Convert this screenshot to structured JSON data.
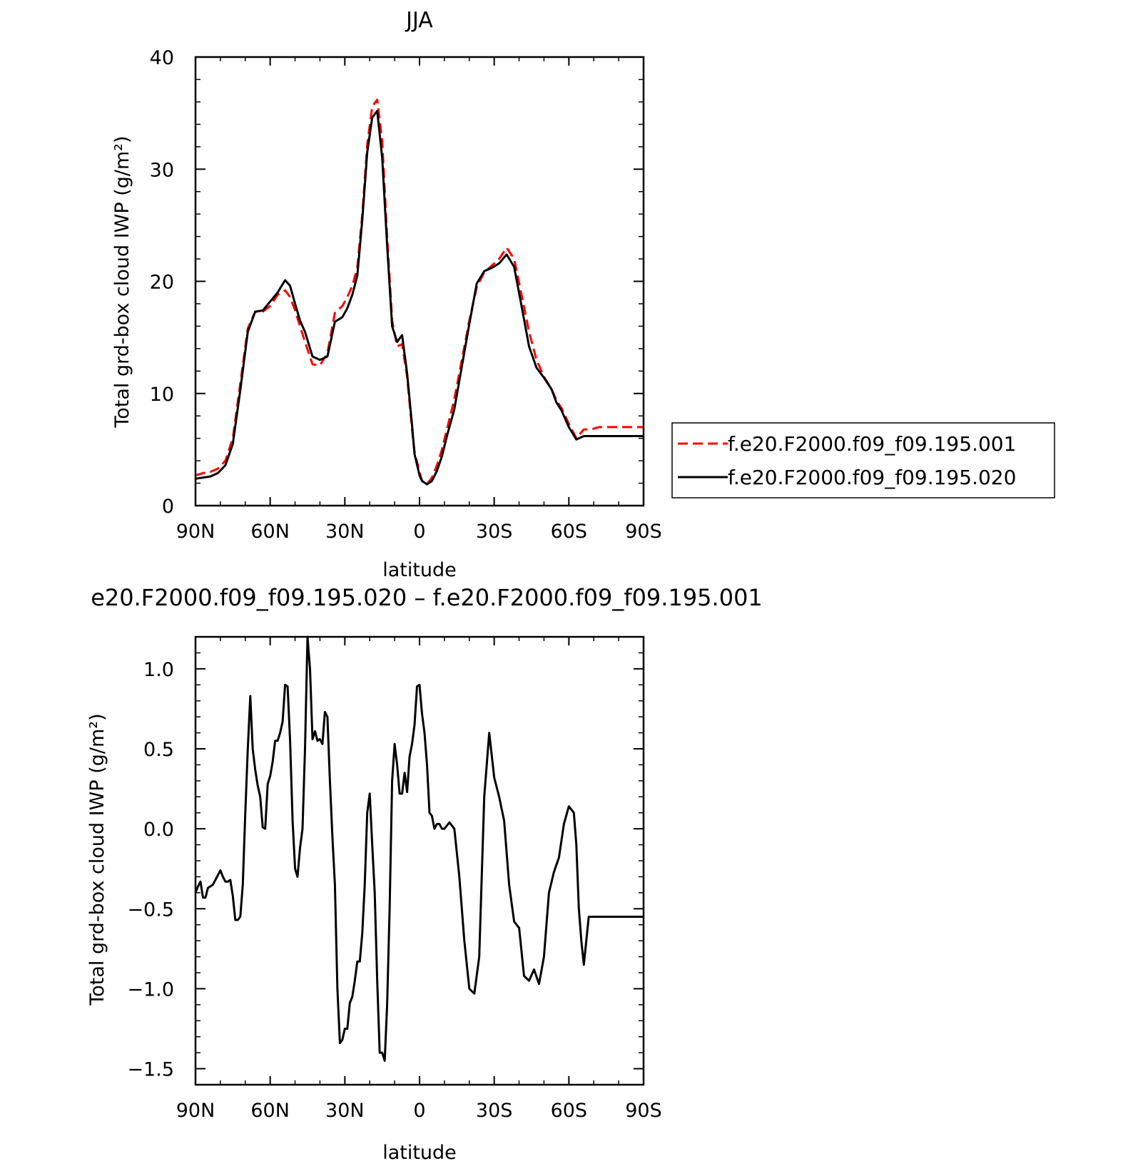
{
  "chart_data": [
    {
      "type": "line",
      "title": "JJA",
      "xlabel": "latitude",
      "ylabel": "Total grd-box cloud IWP (g/m²)",
      "xlim": [
        90,
        -90
      ],
      "ylim": [
        0,
        40
      ],
      "x_ticks": [
        90,
        60,
        30,
        0,
        -30,
        -60,
        -90
      ],
      "x_tick_labels": [
        "90N",
        "60N",
        "30N",
        "0",
        "30S",
        "60S",
        "90S"
      ],
      "y_ticks": [
        0,
        10,
        20,
        30,
        40
      ],
      "y_tick_labels": [
        "0",
        "10",
        "20",
        "30",
        "40"
      ],
      "legend_position": "right",
      "series": [
        {
          "name": "f.e20.F2000.f09_f09.195.001",
          "color": "#ff0000",
          "dash": "dashed",
          "x": [
            90,
            87,
            84,
            81,
            78,
            75,
            72,
            69,
            66,
            63,
            60,
            57,
            54,
            52,
            50,
            48,
            46,
            43,
            40,
            37,
            34,
            31,
            29,
            27,
            25,
            23,
            21,
            19,
            17,
            15,
            13,
            11,
            9,
            7,
            5,
            3,
            2,
            0,
            -1,
            -3,
            -5,
            -7,
            -9,
            -11,
            -14,
            -17,
            -20,
            -23,
            -26,
            -29,
            -32,
            -35,
            -38,
            -41,
            -44,
            -47,
            -50,
            -53,
            -55,
            -57,
            -60,
            -63,
            -66,
            -69,
            -72,
            -75,
            -78,
            -80,
            -82,
            -84,
            -86,
            -88,
            -90
          ],
          "y": [
            2.7,
            2.9,
            3.0,
            3.3,
            4.0,
            6.0,
            10.9,
            15.8,
            17.3,
            17.3,
            17.8,
            18.8,
            19.2,
            18.6,
            17.4,
            16.0,
            14.6,
            12.6,
            12.5,
            13.6,
            17.2,
            17.8,
            18.6,
            19.6,
            21.2,
            26.0,
            32.2,
            35.6,
            36.2,
            32.5,
            24.0,
            16.5,
            14.2,
            14.4,
            11.5,
            6.8,
            4.8,
            3.0,
            2.2,
            1.9,
            2.5,
            3.6,
            5.0,
            6.8,
            9.5,
            13.0,
            16.5,
            19.5,
            20.8,
            21.4,
            22.0,
            23.0,
            22.0,
            18.8,
            15.5,
            13.0,
            11.5,
            10.4,
            9.4,
            8.7,
            7.3,
            6.0,
            6.8,
            6.8,
            7.0,
            7.0,
            7.0,
            7.0,
            7.0,
            7.0,
            7.0,
            7.0,
            7.0
          ]
        },
        {
          "name": "f.e20.F2000.f09_f09.195.020",
          "color": "#000000",
          "dash": "solid",
          "x": [
            90,
            87,
            84,
            81,
            78,
            75,
            72,
            69,
            66,
            63,
            60,
            57,
            54,
            52,
            50,
            48,
            46,
            43,
            40,
            37,
            34,
            31,
            29,
            27,
            25,
            23,
            21,
            19,
            17,
            15,
            13,
            11,
            9,
            7,
            5,
            3,
            2,
            0,
            -1,
            -3,
            -5,
            -7,
            -9,
            -11,
            -14,
            -17,
            -20,
            -23,
            -26,
            -29,
            -32,
            -35,
            -38,
            -41,
            -44,
            -47,
            -50,
            -53,
            -55,
            -57,
            -60,
            -63,
            -66,
            -69,
            -72,
            -75,
            -78,
            -80,
            -82,
            -84,
            -86,
            -88,
            -90
          ],
          "y": [
            2.4,
            2.5,
            2.6,
            2.9,
            3.6,
            5.5,
            10.3,
            15.5,
            17.3,
            17.4,
            18.2,
            19.0,
            20.1,
            19.6,
            18.0,
            16.5,
            15.5,
            13.3,
            13.0,
            13.3,
            16.4,
            16.8,
            17.6,
            18.8,
            20.5,
            25.5,
            31.5,
            34.6,
            35.2,
            31.0,
            23.2,
            16.0,
            14.6,
            15.2,
            11.8,
            7.2,
            4.6,
            2.7,
            2.2,
            1.9,
            2.2,
            3.1,
            4.4,
            6.2,
            8.6,
            12.4,
            16.2,
            19.8,
            20.9,
            21.2,
            21.6,
            22.4,
            21.3,
            17.8,
            14.2,
            12.3,
            11.4,
            10.4,
            9.2,
            8.5,
            7.0,
            5.9,
            6.2,
            6.2,
            6.2,
            6.2,
            6.2,
            6.2,
            6.2,
            6.2,
            6.2,
            6.2,
            6.2
          ]
        }
      ]
    },
    {
      "type": "line",
      "title": "e20.F2000.f09_f09.195.020 – f.e20.F2000.f09_f09.195.001",
      "xlabel": "latitude",
      "ylabel": "Total grd-box cloud IWP (g/m²)",
      "xlim": [
        90,
        -90
      ],
      "ylim": [
        -1.6,
        1.2
      ],
      "x_ticks": [
        90,
        60,
        30,
        0,
        -30,
        -60,
        -90
      ],
      "x_tick_labels": [
        "90N",
        "60N",
        "30N",
        "0",
        "30S",
        "60S",
        "90S"
      ],
      "y_ticks": [
        -1.5,
        -1.0,
        -0.5,
        0.0,
        0.5,
        1.0
      ],
      "y_tick_labels": [
        "−1.5",
        "−1.0",
        "−0.5",
        "0.0",
        "0.5",
        "1.0"
      ],
      "series": [
        {
          "color": "#000000",
          "dash": "solid",
          "x": [
            90,
            89,
            88,
            87,
            86,
            85,
            83,
            81,
            80,
            79,
            78,
            77,
            76,
            75,
            74,
            73,
            72,
            71,
            70,
            69,
            68,
            67,
            66,
            65,
            64,
            63,
            62,
            61,
            60,
            59,
            58,
            57,
            56,
            55,
            54,
            53,
            52,
            51,
            50,
            49,
            48,
            47,
            46,
            45,
            44,
            43,
            42,
            41,
            40,
            39,
            38,
            37,
            36,
            35,
            34,
            33,
            32,
            31,
            30,
            29,
            28,
            27,
            26,
            25,
            24,
            23,
            22,
            21,
            20,
            19,
            18,
            17,
            16,
            15,
            14,
            13,
            12,
            11,
            10,
            9,
            8,
            7,
            6,
            5,
            4,
            3,
            2,
            1,
            0,
            -1,
            -2,
            -3,
            -4,
            -5,
            -6,
            -7,
            -8,
            -9,
            -10,
            -12,
            -14,
            -16,
            -18,
            -20,
            -22,
            -24,
            -26,
            -28,
            -30,
            -32,
            -34,
            -36,
            -38,
            -40,
            -42,
            -44,
            -46,
            -48,
            -50,
            -52,
            -54,
            -56,
            -58,
            -60,
            -62,
            -63,
            -64,
            -65,
            -66,
            -68,
            -70,
            -72,
            -74,
            -76,
            -78,
            -80,
            -82,
            -84,
            -86,
            -87,
            -88,
            -90
          ],
          "y": [
            -0.4,
            -0.36,
            -0.33,
            -0.43,
            -0.43,
            -0.37,
            -0.35,
            -0.29,
            -0.26,
            -0.3,
            -0.33,
            -0.33,
            -0.32,
            -0.42,
            -0.57,
            -0.57,
            -0.55,
            -0.35,
            0.1,
            0.5,
            0.83,
            0.5,
            0.37,
            0.27,
            0.2,
            0.01,
            0.0,
            0.28,
            0.33,
            0.42,
            0.55,
            0.55,
            0.6,
            0.67,
            0.9,
            0.89,
            0.55,
            0.05,
            -0.25,
            -0.3,
            -0.12,
            0.0,
            0.5,
            1.2,
            1.0,
            0.56,
            0.61,
            0.55,
            0.56,
            0.53,
            0.73,
            0.7,
            0.3,
            -0.05,
            -0.35,
            -1.0,
            -1.34,
            -1.32,
            -1.25,
            -1.25,
            -1.09,
            -1.05,
            -0.95,
            -0.83,
            -0.83,
            -0.65,
            -0.35,
            0.1,
            0.22,
            -0.1,
            -0.4,
            -0.95,
            -1.4,
            -1.4,
            -1.45,
            -1.1,
            -0.5,
            0.3,
            0.53,
            0.4,
            0.22,
            0.22,
            0.35,
            0.23,
            0.45,
            0.53,
            0.65,
            0.89,
            0.9,
            0.72,
            0.6,
            0.4,
            0.1,
            0.08,
            0.0,
            0.03,
            0.03,
            0.0,
            0.0,
            0.04,
            0.0,
            -0.3,
            -0.7,
            -1.0,
            -1.03,
            -0.8,
            0.2,
            0.6,
            0.32,
            0.2,
            0.05,
            -0.35,
            -0.58,
            -0.62,
            -0.92,
            -0.95,
            -0.88,
            -0.97,
            -0.8,
            -0.4,
            -0.27,
            -0.18,
            0.03,
            0.14,
            0.1,
            -0.1,
            -0.5,
            -0.7,
            -0.85,
            -0.55,
            -0.55,
            -0.55,
            -0.55,
            -0.55,
            -0.55,
            -0.55,
            -0.55,
            -0.55,
            -0.55,
            -0.55,
            -0.55,
            -0.55
          ]
        }
      ]
    }
  ]
}
